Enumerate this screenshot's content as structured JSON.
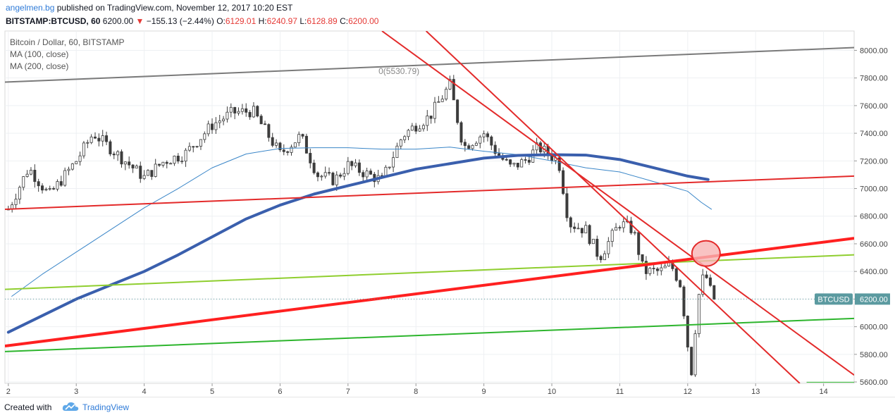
{
  "header": {
    "author": "angelmen.bg",
    "published_text": "published on TradingView.com, November 12, 2017 10:20 EST",
    "symbol": "BITSTAMP:BTCUSD, 60",
    "last_price": "6200.00",
    "change_arrow": "▼",
    "change": "−155.13 (−2.44%)",
    "open_label": "O:",
    "open": "6129.01",
    "high_label": "H:",
    "high": "6240.97",
    "low_label": "L:",
    "low": "6128.89",
    "close_label": "C:",
    "close": "6200.00"
  },
  "legend": {
    "title": "Bitcoin / Dollar, 60, BITSTAMP",
    "ma100": "MA (100, close)",
    "ma200": "MA (200, close)"
  },
  "footer": {
    "created_with": "Created with",
    "brand": "TradingView",
    "logo_icon": "tradingview-cloud-icon"
  },
  "chart_data": {
    "type": "candlestick",
    "symbol_label": "BTCUSD",
    "last_price_label": "6200.00",
    "fib_label": "0(5530.79)",
    "ylim": [
      5590,
      8140
    ],
    "y_ticks": [
      5600,
      5800,
      6000,
      6200,
      6400,
      6600,
      6800,
      7000,
      7200,
      7400,
      7600,
      7800,
      8000
    ],
    "y_tick_labels": [
      "5600.00",
      "5800.00",
      "6000.00",
      "6200.00",
      "6400.00",
      "6600.00",
      "6800.00",
      "7000.00",
      "7200.00",
      "7400.00",
      "7600.00",
      "7800.00",
      "8000.00"
    ],
    "x_range": [
      1.95,
      14.45
    ],
    "x_ticks": [
      2,
      3,
      4,
      5,
      6,
      7,
      8,
      9,
      10,
      11,
      12,
      13,
      14
    ],
    "x_tick_labels": [
      "2",
      "3",
      "4",
      "5",
      "6",
      "7",
      "8",
      "9",
      "10",
      "11",
      "12",
      "13",
      "14"
    ],
    "colors": {
      "up": "#26a69a",
      "down": "#c62828",
      "candle_body": "#3c3c3c",
      "ma100": "#3a86c8",
      "ma200": "#3a5fad",
      "label_bg": "#5b9aa0"
    },
    "ma100": [
      [
        2.05,
        6220
      ],
      [
        2.5,
        6380
      ],
      [
        3.0,
        6540
      ],
      [
        3.5,
        6700
      ],
      [
        4.0,
        6860
      ],
      [
        4.5,
        7000
      ],
      [
        5.0,
        7150
      ],
      [
        5.5,
        7250
      ],
      [
        6.0,
        7290
      ],
      [
        6.5,
        7295
      ],
      [
        7.0,
        7295
      ],
      [
        7.5,
        7285
      ],
      [
        8.0,
        7285
      ],
      [
        8.5,
        7300
      ],
      [
        9.0,
        7270
      ],
      [
        9.5,
        7245
      ],
      [
        10.0,
        7200
      ],
      [
        10.5,
        7150
      ],
      [
        11.0,
        7120
      ],
      [
        11.5,
        7050
      ],
      [
        12.0,
        6980
      ],
      [
        12.2,
        6900
      ],
      [
        12.35,
        6850
      ]
    ],
    "ma200": [
      [
        2.0,
        5960
      ],
      [
        2.5,
        6080
      ],
      [
        3.0,
        6200
      ],
      [
        3.5,
        6300
      ],
      [
        4.0,
        6400
      ],
      [
        4.5,
        6520
      ],
      [
        5.0,
        6650
      ],
      [
        5.5,
        6780
      ],
      [
        6.0,
        6880
      ],
      [
        6.5,
        6960
      ],
      [
        7.0,
        7020
      ],
      [
        7.5,
        7080
      ],
      [
        8.0,
        7140
      ],
      [
        8.5,
        7180
      ],
      [
        9.0,
        7220
      ],
      [
        9.5,
        7240
      ],
      [
        10.0,
        7245
      ],
      [
        10.5,
        7242
      ],
      [
        11.0,
        7210
      ],
      [
        11.5,
        7150
      ],
      [
        12.0,
        7090
      ],
      [
        12.3,
        7065
      ]
    ],
    "trendlines": [
      {
        "color": "#7a7a7a",
        "width": 2,
        "from": [
          1.95,
          7770
        ],
        "to": [
          14.45,
          8020
        ]
      },
      {
        "color": "#e32a2a",
        "width": 2,
        "from": [
          1.95,
          6850
        ],
        "to": [
          14.45,
          7090
        ]
      },
      {
        "color": "#8fce2f",
        "width": 2,
        "from": [
          1.95,
          6270
        ],
        "to": [
          14.45,
          6520
        ]
      },
      {
        "color": "#2db52d",
        "width": 2,
        "from": [
          1.95,
          5820
        ],
        "to": [
          14.45,
          6060
        ]
      },
      {
        "color": "#ff2020",
        "width": 4,
        "from": [
          1.95,
          5860
        ],
        "to": [
          14.45,
          6640
        ]
      },
      {
        "color": "#e32a2a",
        "width": 2,
        "from": [
          7.5,
          8140
        ],
        "to": [
          14.45,
          5650
        ]
      },
      {
        "color": "#e32a2a",
        "width": 2,
        "from": [
          8.15,
          8140
        ],
        "to": [
          13.65,
          5590
        ]
      },
      {
        "color": "#2db52d",
        "width": 1,
        "from": [
          13.75,
          5598
        ],
        "to": [
          14.45,
          5598
        ]
      }
    ],
    "highlight_circle": {
      "x": 12.27,
      "y": 6530,
      "fill": "#f8b4b4",
      "stroke": "#e32a2a"
    },
    "current_price": 6200,
    "anchors": [
      [
        2.0,
        6850
      ],
      [
        2.3,
        7150
      ],
      [
        2.6,
        6950
      ],
      [
        3.0,
        7200
      ],
      [
        3.25,
        7400
      ],
      [
        3.6,
        7250
      ],
      [
        4.0,
        7080
      ],
      [
        4.3,
        7200
      ],
      [
        4.6,
        7250
      ],
      [
        5.0,
        7460
      ],
      [
        5.3,
        7550
      ],
      [
        5.6,
        7560
      ],
      [
        6.0,
        7250
      ],
      [
        6.3,
        7380
      ],
      [
        6.55,
        7100
      ],
      [
        6.8,
        7060
      ],
      [
        7.0,
        7170
      ],
      [
        7.3,
        7100
      ],
      [
        7.5,
        7060
      ],
      [
        7.8,
        7380
      ],
      [
        8.0,
        7460
      ],
      [
        8.2,
        7520
      ],
      [
        8.5,
        7750
      ],
      [
        8.7,
        7300
      ],
      [
        9.0,
        7400
      ],
      [
        9.2,
        7250
      ],
      [
        9.4,
        7150
      ],
      [
        9.6,
        7200
      ],
      [
        9.8,
        7300
      ],
      [
        10.1,
        7200
      ],
      [
        10.25,
        6750
      ],
      [
        10.5,
        6700
      ],
      [
        10.7,
        6500
      ],
      [
        11.0,
        6750
      ],
      [
        11.2,
        6700
      ],
      [
        11.35,
        6400
      ],
      [
        11.6,
        6400
      ],
      [
        11.75,
        6450
      ],
      [
        11.9,
        6300
      ],
      [
        12.05,
        5650
      ],
      [
        12.15,
        6200
      ],
      [
        12.25,
        6400
      ],
      [
        12.4,
        6150
      ]
    ]
  }
}
